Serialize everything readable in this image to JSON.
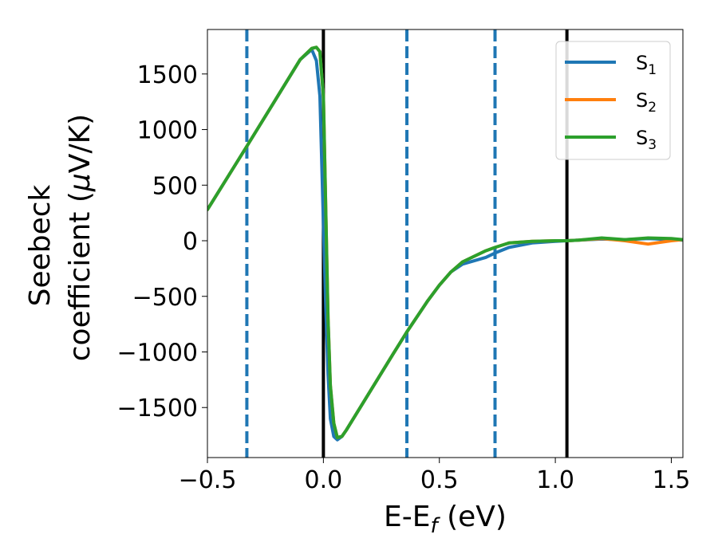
{
  "chart_data": {
    "type": "line",
    "xlabel": "E-E",
    "xlabel_sub": "f",
    "xlabel_unit": " (eV)",
    "ylabel_line1": "Seebeck",
    "ylabel_line2": "coefficient  (",
    "ylabel_mu": "μ",
    "ylabel_unit": "V/K)",
    "xlim": [
      -0.5,
      1.55
    ],
    "ylim": [
      -1950,
      1900
    ],
    "xticks": [
      -0.5,
      0.0,
      0.5,
      1.0,
      1.5
    ],
    "xtick_labels": [
      "−0.5",
      "0.0",
      "0.5",
      "1.0",
      "1.5"
    ],
    "yticks": [
      -1500,
      -1000,
      -500,
      0,
      500,
      1000,
      1500
    ],
    "ytick_labels": [
      "−1500",
      "−1000",
      "−500",
      "0",
      "500",
      "1000",
      "1500"
    ],
    "grid": false,
    "legend_position": "top-right",
    "series": [
      {
        "name": "S",
        "sub": "1",
        "color": "#1f77b4",
        "x": [
          -0.5,
          -0.33,
          -0.2,
          -0.1,
          -0.05,
          -0.03,
          -0.015,
          0.0,
          0.01,
          0.02,
          0.03,
          0.045,
          0.06,
          0.08,
          0.1,
          0.2,
          0.3,
          0.36,
          0.45,
          0.5,
          0.55,
          0.6,
          0.7,
          0.74,
          0.8,
          0.9,
          1.0,
          1.05,
          1.1,
          1.2,
          1.3,
          1.4,
          1.5,
          1.55
        ],
        "y": [
          280,
          850,
          1290,
          1630,
          1720,
          1620,
          1300,
          150,
          -600,
          -1200,
          -1600,
          -1760,
          -1790,
          -1760,
          -1700,
          -1360,
          -1020,
          -820,
          -540,
          -400,
          -280,
          -210,
          -150,
          -110,
          -60,
          -20,
          -5,
          0,
          5,
          15,
          10,
          20,
          10,
          5
        ]
      },
      {
        "name": "S",
        "sub": "2",
        "color": "#ff7f0e",
        "x": [
          -0.5,
          -0.33,
          -0.2,
          -0.1,
          -0.05,
          -0.03,
          -0.015,
          0.0,
          0.01,
          0.02,
          0.03,
          0.045,
          0.06,
          0.08,
          0.1,
          0.2,
          0.3,
          0.36,
          0.45,
          0.5,
          0.55,
          0.6,
          0.7,
          0.74,
          0.8,
          0.9,
          1.0,
          1.05,
          1.1,
          1.2,
          1.3,
          1.4,
          1.5,
          1.55
        ],
        "y": [
          280,
          850,
          1290,
          1630,
          1730,
          1740,
          1700,
          1300,
          300,
          -700,
          -1300,
          -1640,
          -1770,
          -1760,
          -1700,
          -1360,
          -1020,
          -820,
          -540,
          -400,
          -280,
          -190,
          -90,
          -60,
          -20,
          -5,
          0,
          0,
          5,
          20,
          0,
          -30,
          0,
          10
        ]
      },
      {
        "name": "S",
        "sub": "3",
        "color": "#2ca02c",
        "x": [
          -0.5,
          -0.33,
          -0.2,
          -0.1,
          -0.05,
          -0.03,
          -0.015,
          0.0,
          0.01,
          0.02,
          0.03,
          0.045,
          0.06,
          0.08,
          0.1,
          0.2,
          0.3,
          0.36,
          0.45,
          0.5,
          0.55,
          0.6,
          0.7,
          0.74,
          0.8,
          0.9,
          1.0,
          1.05,
          1.1,
          1.2,
          1.3,
          1.4,
          1.5,
          1.55
        ],
        "y": [
          280,
          850,
          1290,
          1630,
          1730,
          1740,
          1700,
          1300,
          300,
          -700,
          -1300,
          -1640,
          -1770,
          -1760,
          -1700,
          -1360,
          -1020,
          -820,
          -540,
          -400,
          -280,
          -190,
          -90,
          -60,
          -20,
          -5,
          0,
          0,
          5,
          25,
          10,
          25,
          20,
          10
        ]
      }
    ],
    "vlines": [
      {
        "x": -0.33,
        "style": "dashed",
        "color": "#1f77b4"
      },
      {
        "x": 0.0,
        "style": "solid",
        "color": "#000000"
      },
      {
        "x": 0.36,
        "style": "dashed",
        "color": "#1f77b4"
      },
      {
        "x": 0.74,
        "style": "dashed",
        "color": "#1f77b4"
      },
      {
        "x": 1.05,
        "style": "solid",
        "color": "#000000"
      }
    ]
  }
}
